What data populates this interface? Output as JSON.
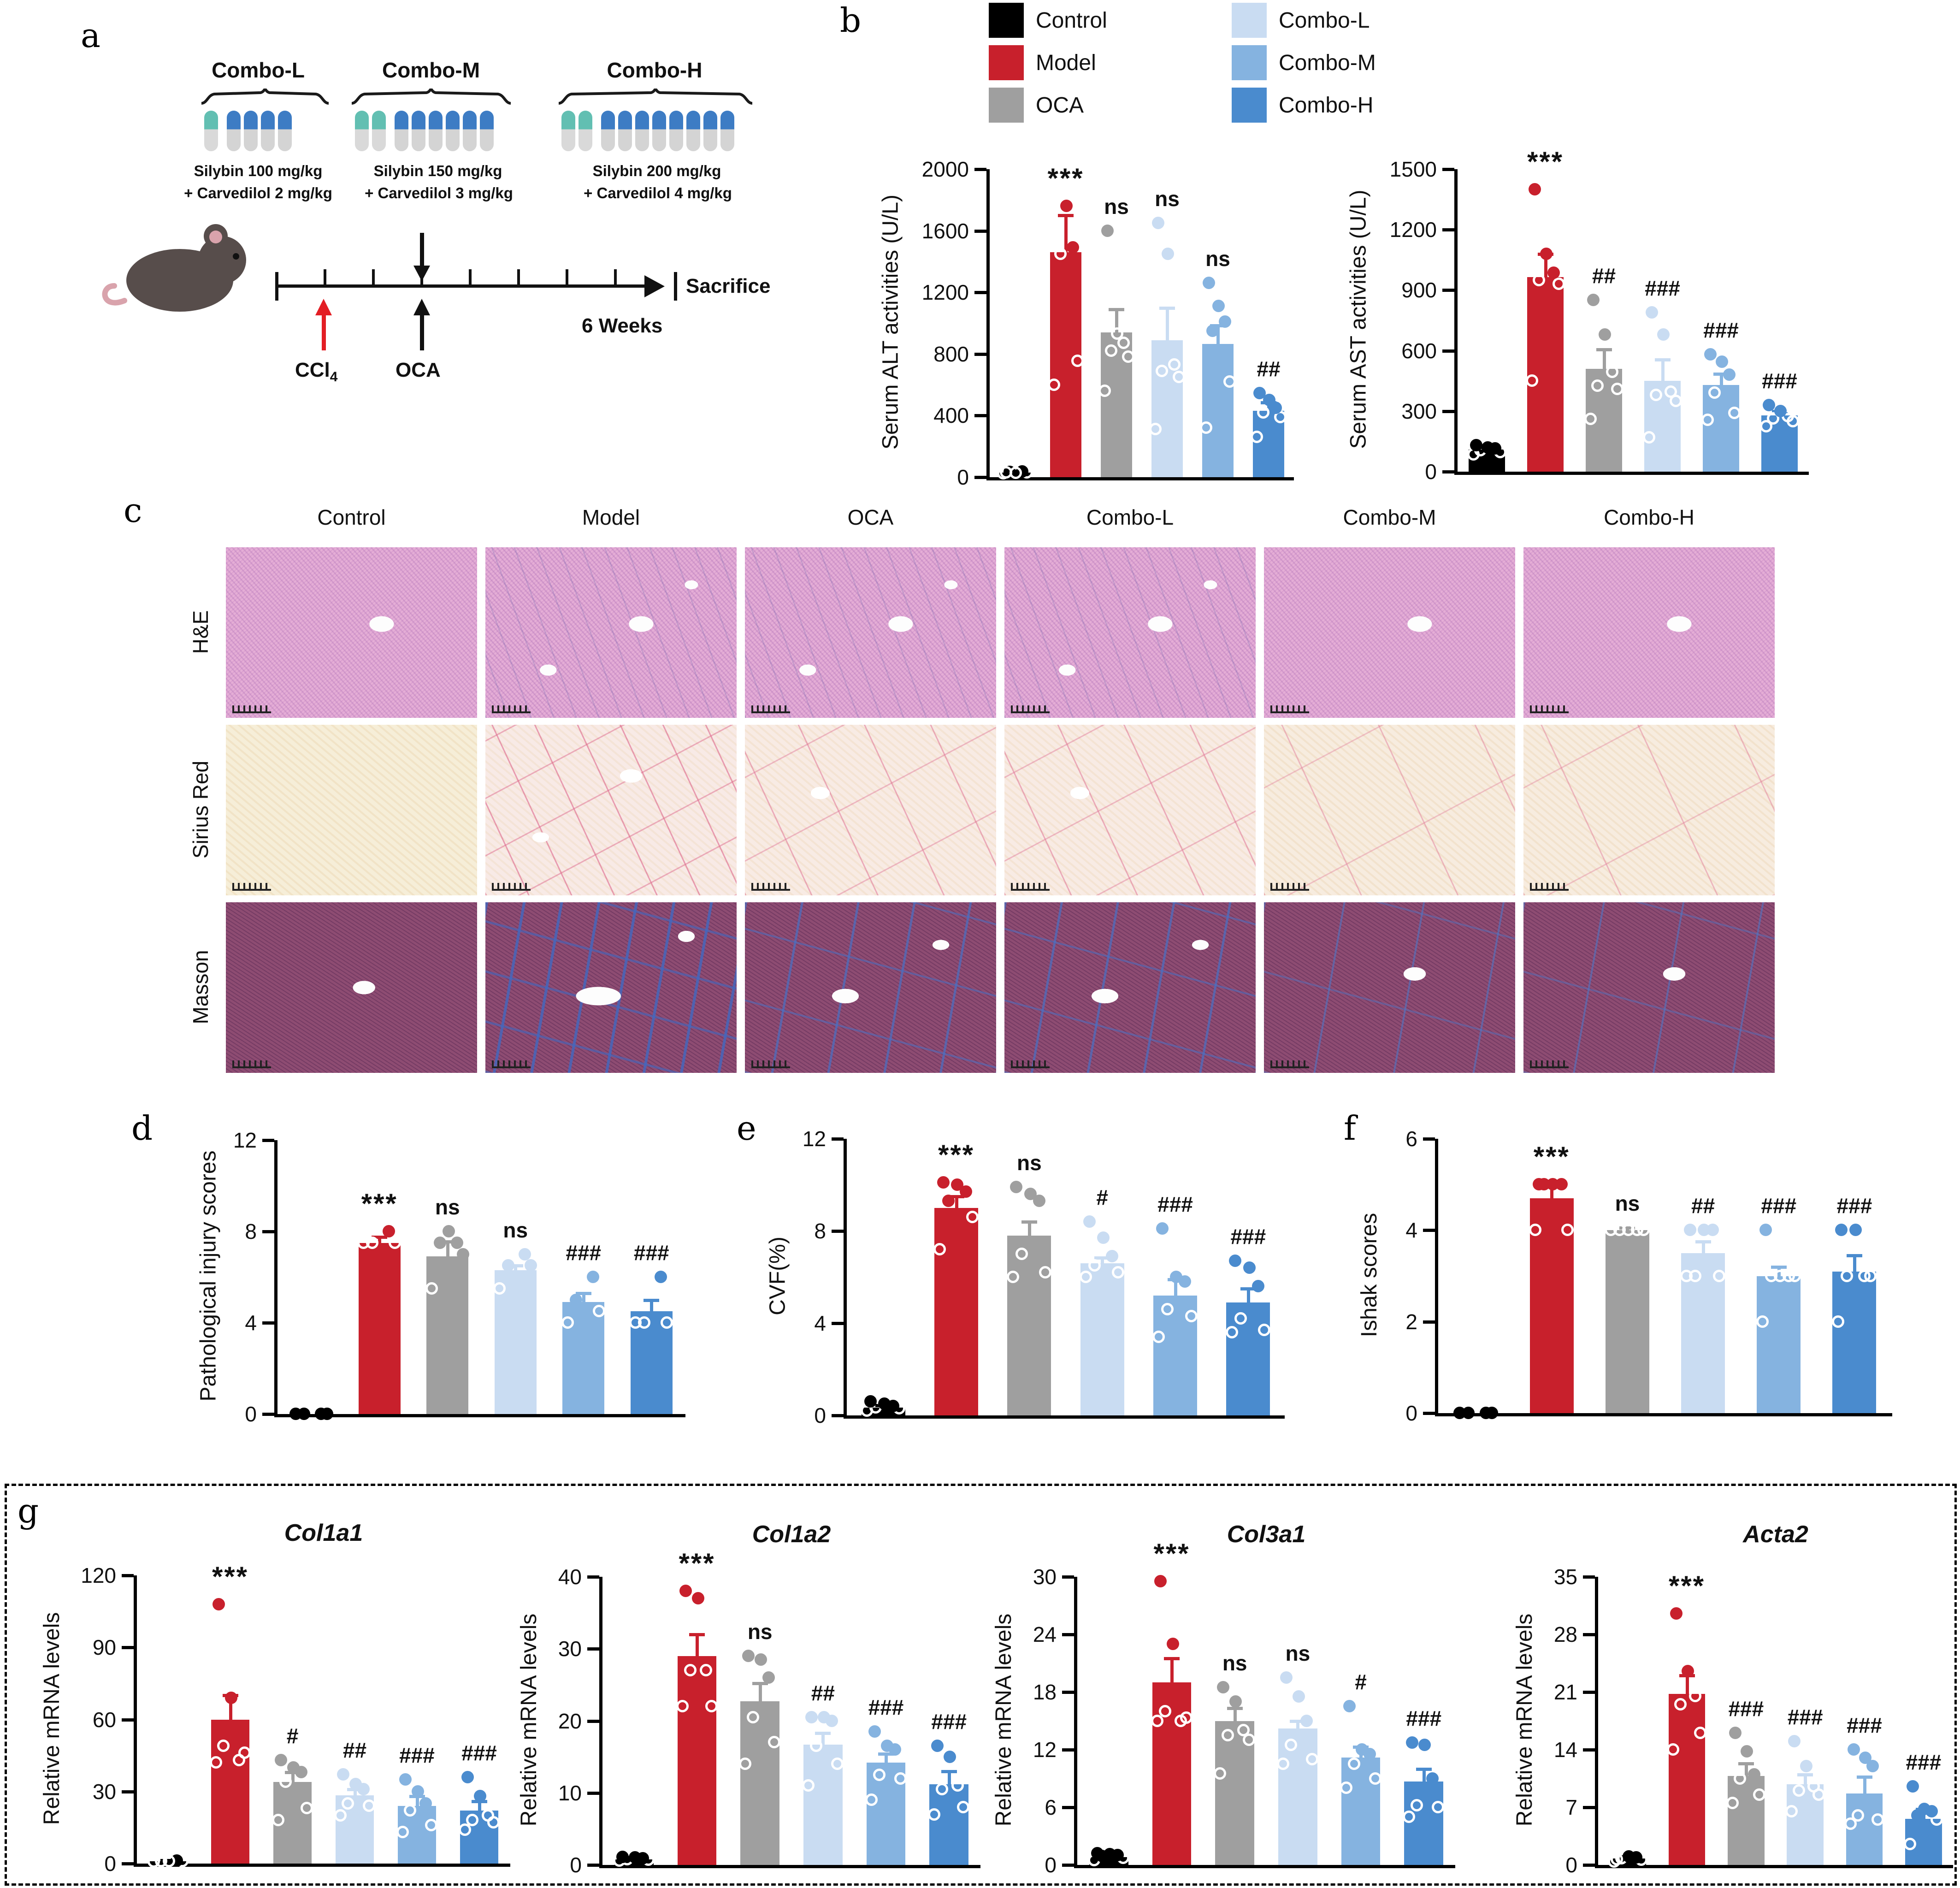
{
  "panel_labels": {
    "a": "a",
    "b": "b",
    "c": "c",
    "d": "d",
    "e": "e",
    "f": "f",
    "g": "g"
  },
  "colors": {
    "groups": [
      "#000000",
      "#c8202c",
      "#9f9f9f",
      "#c9dcf2",
      "#85b3e0",
      "#4a8bce"
    ],
    "capsule_teal": "#62bfb2",
    "capsule_blue": "#3d7cc4",
    "ccl4_arrow": "#e31e24",
    "axis": "#000000"
  },
  "icons": {
    "mouse": "mouse-illustration",
    "red_arrow": "up-arrow",
    "oca_arrow": "up-arrow",
    "gavage_arrow": "down-arrow",
    "timeline_arrow": "right-arrow",
    "brace": "curly-brace"
  },
  "panel_a": {
    "groups": [
      {
        "name": "Combo-L",
        "teal": 1,
        "blue": 4,
        "dose1": "Silybin 100 mg/kg",
        "dose2": "+ Carvedilol 2 mg/kg"
      },
      {
        "name": "Combo-M",
        "teal": 2,
        "blue": 6,
        "dose1": "Silybin 150 mg/kg",
        "dose2": "+ Carvedilol 3 mg/kg"
      },
      {
        "name": "Combo-H",
        "teal": 2,
        "blue": 8,
        "dose1": "Silybin 200 mg/kg",
        "dose2": "+ Carvedilol 4 mg/kg"
      }
    ],
    "timeline": {
      "ccl4_main": "CCl",
      "ccl4_sub": "4",
      "oca": "OCA",
      "sacrifice": "Sacrifice",
      "weeks": "6 Weeks"
    }
  },
  "legend": {
    "items": [
      {
        "label": "Control"
      },
      {
        "label": "Model"
      },
      {
        "label": "OCA"
      },
      {
        "label": "Combo-L"
      },
      {
        "label": "Combo-M"
      },
      {
        "label": "Combo-H"
      }
    ]
  },
  "panel_c": {
    "columns": [
      "Control",
      "Model",
      "OCA",
      "Combo-L",
      "Combo-M",
      "Combo-H"
    ],
    "rows": [
      "H&E",
      "Sirius Red",
      "Masson"
    ],
    "fibrosis_severity_by_column": [
      0,
      3,
      2,
      2,
      1,
      1
    ]
  },
  "chart_data": [
    {
      "id": "alt",
      "type": "bar",
      "title": "",
      "ylabel": "Serum ALT activities (U/L)",
      "ymax": 2000,
      "yticks": [
        0,
        400,
        800,
        1200,
        1600,
        2000
      ],
      "groups": [
        "Control",
        "Model",
        "OCA",
        "Combo-L",
        "Combo-M",
        "Combo-H"
      ],
      "values": [
        30,
        1460,
        940,
        890,
        865,
        430
      ],
      "errors": [
        10,
        240,
        150,
        210,
        120,
        55
      ],
      "sig": [
        "",
        "***",
        "ns",
        "ns",
        "ns",
        "##"
      ],
      "points": [
        [
          25,
          30,
          32,
          35,
          28,
          30
        ],
        [
          600,
          755,
          1450,
          1490,
          1760
        ],
        [
          560,
          780,
          820,
          870,
          930,
          1600
        ],
        [
          310,
          650,
          690,
          730,
          1450,
          1650
        ],
        [
          320,
          620,
          950,
          1010,
          1110,
          1260
        ],
        [
          260,
          390,
          420,
          450,
          500,
          545
        ]
      ]
    },
    {
      "id": "ast",
      "type": "bar",
      "title": "",
      "ylabel": "Serum AST activities (U/L)",
      "ymax": 1500,
      "yticks": [
        0,
        300,
        600,
        900,
        1200,
        1500
      ],
      "groups": [
        "Control",
        "Model",
        "OCA",
        "Combo-L",
        "Combo-M",
        "Combo-H"
      ],
      "values": [
        110,
        965,
        510,
        450,
        430,
        280
      ],
      "errors": [
        12,
        115,
        95,
        105,
        55,
        20
      ],
      "sig": [
        "",
        "***",
        "##",
        "###",
        "###",
        "###"
      ],
      "points": [
        [
          85,
          95,
          105,
          115,
          120,
          130
        ],
        [
          450,
          930,
          950,
          985,
          1080,
          1400
        ],
        [
          260,
          410,
          425,
          495,
          680,
          850
        ],
        [
          170,
          350,
          380,
          395,
          680,
          790
        ],
        [
          255,
          290,
          390,
          480,
          545,
          580
        ],
        [
          225,
          250,
          262,
          275,
          300,
          330
        ]
      ]
    },
    {
      "id": "injury",
      "type": "bar",
      "title": "",
      "ylabel": "Pathological injury scores",
      "ymax": 12,
      "yticks": [
        0,
        4,
        8,
        12
      ],
      "groups": [
        "Control",
        "Model",
        "OCA",
        "Combo-L",
        "Combo-M",
        "Combo-H"
      ],
      "values": [
        0,
        7.5,
        6.9,
        6.3,
        4.9,
        4.5
      ],
      "errors": [
        0,
        0.25,
        0.65,
        0.2,
        0.4,
        0.5
      ],
      "sig": [
        "",
        "***",
        "ns",
        "ns",
        "###",
        "###"
      ],
      "points": [
        [
          0,
          0,
          0,
          0
        ],
        [
          7.5,
          7.5,
          7.5,
          8
        ],
        [
          5.5,
          7,
          7.5,
          7.5,
          8
        ],
        [
          5.5,
          6.5,
          6.5,
          7
        ],
        [
          4,
          4.5,
          5,
          6
        ],
        [
          4,
          4,
          4,
          6
        ]
      ]
    },
    {
      "id": "cvf",
      "type": "bar",
      "title": "",
      "ylabel": "CVF(%)",
      "ymax": 12,
      "yticks": [
        0,
        4,
        8,
        12
      ],
      "groups": [
        "Control",
        "Model",
        "OCA",
        "Combo-L",
        "Combo-M",
        "Combo-H"
      ],
      "values": [
        0.35,
        9.0,
        7.8,
        6.6,
        5.2,
        4.9
      ],
      "errors": [
        0.1,
        0.5,
        0.6,
        0.25,
        0.7,
        0.6
      ],
      "sig": [
        "",
        "***",
        "ns",
        "#",
        "###",
        "###"
      ],
      "points": [
        [
          0.2,
          0.3,
          0.35,
          0.4,
          0.5,
          0.6
        ],
        [
          7.2,
          8.6,
          9.3,
          9.7,
          10.0,
          10.1
        ],
        [
          6.0,
          6.2,
          7.0,
          9.3,
          9.6,
          9.9
        ],
        [
          6.0,
          6.2,
          6.5,
          6.9,
          7.7,
          8.4
        ],
        [
          3.4,
          4.3,
          4.6,
          5.8,
          6.0,
          8.1
        ],
        [
          3.6,
          3.7,
          4.2,
          5.6,
          6.4,
          6.7
        ]
      ]
    },
    {
      "id": "ishak",
      "type": "bar",
      "title": "",
      "ylabel": "Ishak scores",
      "ymax": 6,
      "yticks": [
        0,
        2,
        4,
        6
      ],
      "groups": [
        "Control",
        "Model",
        "OCA",
        "Combo-L",
        "Combo-M",
        "Combo-H"
      ],
      "values": [
        0,
        4.7,
        4.0,
        3.5,
        3.0,
        3.1
      ],
      "errors": [
        0,
        0.3,
        0.05,
        0.25,
        0.2,
        0.35
      ],
      "sig": [
        "",
        "***",
        "ns",
        "##",
        "###",
        "###"
      ],
      "points": [
        [
          0,
          0,
          0,
          0
        ],
        [
          4,
          4,
          5,
          5,
          5,
          5
        ],
        [
          4,
          4,
          4,
          4,
          4
        ],
        [
          3,
          3,
          3,
          4,
          4,
          4
        ],
        [
          2,
          3,
          3,
          3,
          3,
          4
        ],
        [
          2,
          3,
          3,
          3,
          4,
          4
        ]
      ]
    },
    {
      "id": "col1a1",
      "type": "bar",
      "title": "Col1a1",
      "ylabel": "Relative mRNA levels",
      "ymax": 120,
      "yticks": [
        0,
        30,
        60,
        90,
        120
      ],
      "groups": [
        "Control",
        "Model",
        "OCA",
        "Combo-L",
        "Combo-M",
        "Combo-H"
      ],
      "values": [
        1,
        60,
        34,
        28.5,
        24,
        22
      ],
      "errors": [
        0.3,
        10,
        4,
        2.5,
        4,
        4
      ],
      "sig": [
        "",
        "***",
        "#",
        "##",
        "###",
        "###"
      ],
      "points": [
        [
          0.8,
          1,
          1,
          1.2,
          1
        ],
        [
          42,
          46,
          49,
          43,
          69,
          108
        ],
        [
          18,
          23,
          34,
          38,
          40,
          43
        ],
        [
          20,
          24,
          25,
          31,
          33,
          37
        ],
        [
          13,
          16,
          22,
          25,
          30,
          35
        ],
        [
          14,
          17,
          18,
          20,
          28,
          36
        ]
      ]
    },
    {
      "id": "col1a2",
      "type": "bar",
      "title": "Col1a2",
      "ylabel": "Relative mRNA levels",
      "ymax": 40,
      "yticks": [
        0,
        10,
        20,
        30,
        40
      ],
      "groups": [
        "Control",
        "Model",
        "OCA",
        "Combo-L",
        "Combo-M",
        "Combo-H"
      ],
      "values": [
        0.8,
        29,
        22.7,
        16.7,
        14.2,
        11.2
      ],
      "errors": [
        0.2,
        3,
        2.5,
        1.6,
        1.2,
        1.8
      ],
      "sig": [
        "",
        "***",
        "ns",
        "##",
        "###",
        "###"
      ],
      "points": [
        [
          0.6,
          0.7,
          0.8,
          0.9,
          1.0,
          1.1
        ],
        [
          22,
          22,
          27,
          27,
          37,
          38
        ],
        [
          14,
          17,
          20.5,
          26,
          28.5,
          29
        ],
        [
          11,
          14,
          16.5,
          20,
          20.5,
          20.5
        ],
        [
          9,
          12,
          12.5,
          16,
          16.5,
          18.5
        ],
        [
          7,
          8,
          10.5,
          11,
          15,
          16.5
        ]
      ]
    },
    {
      "id": "col3a1",
      "type": "bar",
      "title": "Col3a1",
      "ylabel": "Relative mRNA levels",
      "ymax": 30,
      "yticks": [
        0,
        6,
        12,
        18,
        24,
        30
      ],
      "groups": [
        "Control",
        "Model",
        "OCA",
        "Combo-L",
        "Combo-M",
        "Combo-H"
      ],
      "values": [
        0.8,
        19,
        15,
        14.2,
        11.2,
        8.7
      ],
      "errors": [
        0.2,
        2.5,
        1.3,
        0.8,
        1.1,
        1.3
      ],
      "sig": [
        "",
        "***",
        "ns",
        "ns",
        "#",
        "###"
      ],
      "points": [
        [
          0.5,
          0.7,
          0.9,
          1,
          1.1,
          1.2
        ],
        [
          15,
          15.3,
          16,
          15,
          23,
          29.5
        ],
        [
          9.5,
          13,
          13.5,
          14,
          17,
          18.5
        ],
        [
          10.5,
          11,
          12.5,
          15,
          17.5,
          19.5
        ],
        [
          8,
          9,
          10.5,
          11.5,
          12,
          16.5
        ],
        [
          5,
          6,
          6.2,
          9,
          12.5,
          12.7
        ]
      ]
    },
    {
      "id": "acta2",
      "type": "bar",
      "title": "Acta2",
      "ylabel": "Relative mRNA levels",
      "ymax": 35,
      "yticks": [
        0,
        7,
        14,
        21,
        28,
        35
      ],
      "groups": [
        "Control",
        "Model",
        "OCA",
        "Combo-L",
        "Combo-M",
        "Combo-H"
      ],
      "values": [
        0.8,
        20.8,
        10.8,
        9.8,
        8.7,
        5.6
      ],
      "errors": [
        0.2,
        2.2,
        1.5,
        1.2,
        2.0,
        1.2
      ],
      "sig": [
        "",
        "***",
        "###",
        "###",
        "###",
        "###"
      ],
      "points": [
        [
          0.4,
          0.6,
          0.8,
          0.9,
          1,
          0.7
        ],
        [
          14,
          16,
          19.5,
          20.5,
          23.5,
          30.5
        ],
        [
          7.5,
          8.5,
          10.5,
          11,
          13.8,
          16
        ],
        [
          6.5,
          8.5,
          9,
          9.5,
          12,
          15
        ],
        [
          5,
          5.5,
          6,
          12,
          13,
          14
        ],
        [
          2.5,
          5.5,
          6,
          6.5,
          6.8,
          9.5
        ]
      ]
    }
  ]
}
